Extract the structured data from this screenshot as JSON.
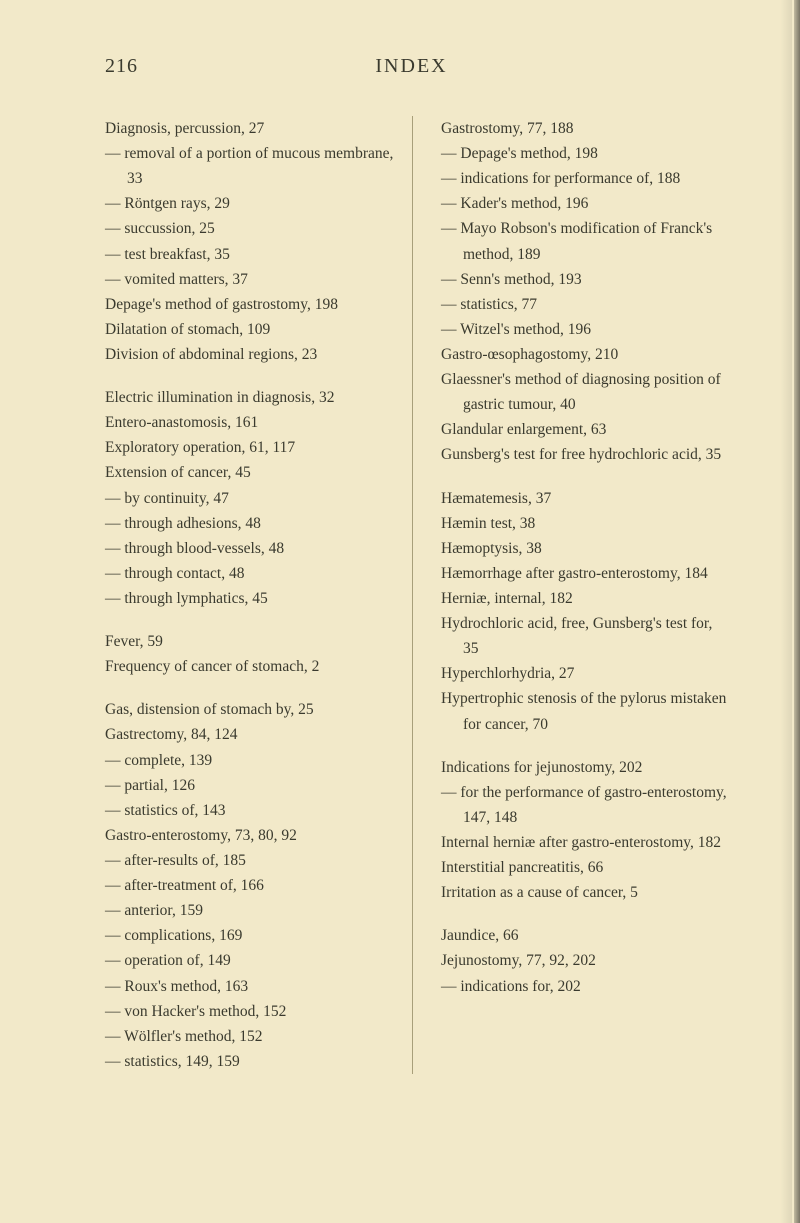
{
  "pageNumber": "216",
  "title": "INDEX",
  "left": [
    {
      "t": "Diagnosis, percussion, 27",
      "cls": "entry"
    },
    {
      "t": "— removal of a portion of mucous membrane, 33",
      "cls": "entry"
    },
    {
      "t": "— Röntgen rays, 29",
      "cls": "entry"
    },
    {
      "t": "— succussion, 25",
      "cls": "entry"
    },
    {
      "t": "— test breakfast, 35",
      "cls": "entry"
    },
    {
      "t": "— vomited matters, 37",
      "cls": "entry"
    },
    {
      "t": "Depage's method of gastrostomy, 198",
      "cls": "entry"
    },
    {
      "t": "Dilatation of stomach, 109",
      "cls": "entry"
    },
    {
      "t": "Division of abdominal regions, 23",
      "cls": "entry"
    },
    {
      "gap": true
    },
    {
      "t": "Electric illumination in diagnosis, 32",
      "cls": "entry"
    },
    {
      "t": "Entero-anastomosis, 161",
      "cls": "entry"
    },
    {
      "t": "Exploratory operation, 61, 117",
      "cls": "entry"
    },
    {
      "t": "Extension of cancer, 45",
      "cls": "entry"
    },
    {
      "t": "— by continuity, 47",
      "cls": "entry"
    },
    {
      "t": "— through adhesions, 48",
      "cls": "entry"
    },
    {
      "t": "— through blood-vessels, 48",
      "cls": "entry"
    },
    {
      "t": "— through contact, 48",
      "cls": "entry"
    },
    {
      "t": "— through lymphatics, 45",
      "cls": "entry"
    },
    {
      "gap": true
    },
    {
      "t": "Fever, 59",
      "cls": "entry"
    },
    {
      "t": "Frequency of cancer of stomach, 2",
      "cls": "entry"
    },
    {
      "gap": true
    },
    {
      "t": "Gas, distension of stomach by, 25",
      "cls": "entry"
    },
    {
      "t": "Gastrectomy, 84, 124",
      "cls": "entry"
    },
    {
      "t": "— complete, 139",
      "cls": "entry"
    },
    {
      "t": "— partial, 126",
      "cls": "entry"
    },
    {
      "t": "— statistics of, 143",
      "cls": "entry"
    },
    {
      "t": "Gastro-enterostomy, 73, 80, 92",
      "cls": "entry"
    },
    {
      "t": "— after-results of, 185",
      "cls": "entry"
    },
    {
      "t": "— after-treatment of, 166",
      "cls": "entry"
    },
    {
      "t": "— anterior, 159",
      "cls": "entry"
    },
    {
      "t": "— complications, 169",
      "cls": "entry"
    },
    {
      "t": "— operation of, 149",
      "cls": "entry"
    },
    {
      "t": "— Roux's method, 163",
      "cls": "entry"
    },
    {
      "t": "— von Hacker's method, 152",
      "cls": "entry"
    },
    {
      "t": "— Wölfler's method, 152",
      "cls": "entry"
    },
    {
      "t": "— statistics, 149, 159",
      "cls": "entry"
    }
  ],
  "right": [
    {
      "t": "Gastrostomy, 77, 188",
      "cls": "entry"
    },
    {
      "t": "— Depage's method, 198",
      "cls": "entry"
    },
    {
      "t": "— indications for performance of, 188",
      "cls": "entry"
    },
    {
      "t": "— Kader's method, 196",
      "cls": "entry"
    },
    {
      "t": "— Mayo Robson's modification of Franck's method, 189",
      "cls": "entry"
    },
    {
      "t": "— Senn's method, 193",
      "cls": "entry"
    },
    {
      "t": "— statistics, 77",
      "cls": "entry"
    },
    {
      "t": "— Witzel's method, 196",
      "cls": "entry"
    },
    {
      "t": "Gastro-œsophagostomy, 210",
      "cls": "entry"
    },
    {
      "t": "Glaessner's method of diagnosing position of gastric tumour, 40",
      "cls": "entry"
    },
    {
      "t": "Glandular enlargement, 63",
      "cls": "entry"
    },
    {
      "t": "Gunsberg's test for free hydrochloric acid, 35",
      "cls": "entry"
    },
    {
      "gap": true
    },
    {
      "t": "Hæmatemesis, 37",
      "cls": "entry"
    },
    {
      "t": "Hæmin test, 38",
      "cls": "entry"
    },
    {
      "t": "Hæmoptysis, 38",
      "cls": "entry"
    },
    {
      "t": "Hæmorrhage after gastro-enterostomy, 184",
      "cls": "entry"
    },
    {
      "t": "Herniæ, internal, 182",
      "cls": "entry"
    },
    {
      "t": "Hydrochloric acid, free, Gunsberg's test for, 35",
      "cls": "entry"
    },
    {
      "t": "Hyperchlorhydria, 27",
      "cls": "entry"
    },
    {
      "t": "Hypertrophic stenosis of the pylorus mistaken for cancer, 70",
      "cls": "entry"
    },
    {
      "gap": true
    },
    {
      "t": "Indications for jejunostomy, 202",
      "cls": "entry"
    },
    {
      "t": "— for the performance of gastro-enterostomy, 147, 148",
      "cls": "entry"
    },
    {
      "t": "Internal herniæ after gastro-enterostomy, 182",
      "cls": "entry"
    },
    {
      "t": "Interstitial pancreatitis, 66",
      "cls": "entry"
    },
    {
      "t": "Irritation as a cause of cancer, 5",
      "cls": "entry"
    },
    {
      "gap": true
    },
    {
      "t": "Jaundice, 66",
      "cls": "entry"
    },
    {
      "t": "Jejunostomy, 77, 92, 202",
      "cls": "entry"
    },
    {
      "t": "— indications for, 202",
      "cls": "entry"
    }
  ]
}
